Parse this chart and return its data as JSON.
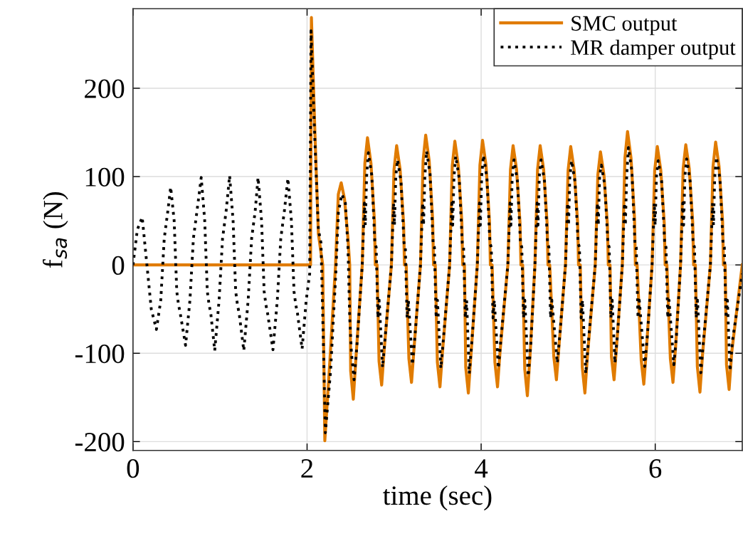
{
  "chart_data": {
    "type": "line",
    "xlabel": "time (sec)",
    "ylabel": "f$_{sa}$ (N)",
    "xlim": [
      0,
      7
    ],
    "xticks": [
      0,
      2,
      4,
      6
    ],
    "ylim": [
      -210,
      290
    ],
    "yticks": [
      {
        "value": -200,
        "label": "-200"
      },
      {
        "value": -100,
        "label": "-100"
      },
      0,
      100,
      200
    ],
    "grid": true,
    "legend": "top right",
    "series": [
      {
        "name": "SMC output",
        "color": "#e07b00",
        "line_style": "solid",
        "x": [
          0,
          2.04,
          2.05,
          2.09,
          2.13,
          2.18,
          2.204,
          2.261,
          2.327,
          2.359,
          2.392,
          2.43,
          2.47,
          2.49,
          2.501,
          2.531,
          2.561,
          2.634,
          2.664,
          2.694,
          2.734,
          2.774,
          2.784,
          2.804,
          2.827,
          2.857,
          2.887,
          2.969,
          2.999,
          3.029,
          3.069,
          3.109,
          3.119,
          3.139,
          3.17,
          3.2,
          3.23,
          3.303,
          3.333,
          3.363,
          3.403,
          3.443,
          3.453,
          3.473,
          3.497,
          3.527,
          3.557,
          3.638,
          3.668,
          3.698,
          3.738,
          3.778,
          3.788,
          3.808,
          3.823,
          3.853,
          3.883,
          3.956,
          3.986,
          4.016,
          4.056,
          4.096,
          4.106,
          4.126,
          4.158,
          4.188,
          4.218,
          4.307,
          4.337,
          4.367,
          4.407,
          4.447,
          4.457,
          4.477,
          4.501,
          4.531,
          4.561,
          4.618,
          4.648,
          4.678,
          4.718,
          4.758,
          4.768,
          4.788,
          4.835,
          4.865,
          4.895,
          4.969,
          4.999,
          5.029,
          5.069,
          5.109,
          5.119,
          5.139,
          5.162,
          5.192,
          5.222,
          5.311,
          5.341,
          5.371,
          5.411,
          5.451,
          5.461,
          5.481,
          5.497,
          5.527,
          5.557,
          5.622,
          5.652,
          5.682,
          5.722,
          5.762,
          5.772,
          5.792,
          5.839,
          5.869,
          5.899,
          5.964,
          5.994,
          6.024,
          6.064,
          6.104,
          6.114,
          6.134,
          6.174,
          6.204,
          6.234,
          6.291,
          6.321,
          6.351,
          6.391,
          6.431,
          6.441,
          6.461,
          6.484,
          6.514,
          6.544,
          6.634,
          6.664,
          6.694,
          6.734,
          6.774,
          6.784,
          6.804,
          6.819,
          6.849,
          6.879,
          7.0
        ],
        "values": [
          0,
          0,
          280,
          150,
          35,
          0,
          -199,
          -110,
          0,
          80,
          93,
          75,
          30,
          0,
          -120,
          -152,
          -106,
          0,
          115,
          144,
          115,
          50,
          0,
          0,
          -109,
          -136,
          -95,
          0,
          108,
          135,
          108,
          47,
          0,
          0,
          -106,
          -133,
          -93,
          0,
          118,
          147,
          118,
          51,
          0,
          0,
          -110,
          -138,
          -97,
          0,
          112,
          140,
          112,
          49,
          0,
          0,
          -116,
          -145,
          -102,
          0,
          113,
          141,
          113,
          49,
          0,
          0,
          -110,
          -138,
          -97,
          0,
          108,
          135,
          108,
          47,
          0,
          0,
          -118,
          -148,
          -104,
          0,
          108,
          135,
          108,
          47,
          0,
          0,
          -104,
          -130,
          -91,
          0,
          107,
          134,
          107,
          47,
          0,
          0,
          -116,
          -145,
          -102,
          0,
          102,
          128,
          102,
          45,
          0,
          0,
          -104,
          -130,
          -91,
          0,
          121,
          151,
          121,
          53,
          0,
          0,
          -108,
          -135,
          -95,
          0,
          107,
          134,
          107,
          47,
          0,
          0,
          -106,
          -133,
          -93,
          0,
          109,
          136,
          109,
          48,
          0,
          0,
          -115,
          -144,
          -101,
          0,
          111,
          139,
          111,
          49,
          0,
          0,
          -113,
          -141,
          -99,
          0
        ]
      },
      {
        "name": "MR damper output",
        "color": "#000000",
        "line_style": "dotted",
        "x": [
          0,
          0.05,
          0.106,
          0.16,
          0.21,
          0.269,
          0.319,
          0.359,
          0.379,
          0.399,
          0.433,
          0.473,
          0.503,
          0.523,
          0.543,
          0.604,
          0.654,
          0.694,
          0.714,
          0.734,
          0.784,
          0.824,
          0.854,
          0.874,
          0.894,
          0.939,
          0.989,
          1.029,
          1.049,
          1.069,
          1.11,
          1.15,
          1.18,
          1.2,
          1.22,
          1.273,
          1.323,
          1.363,
          1.383,
          1.403,
          1.437,
          1.477,
          1.507,
          1.527,
          1.547,
          1.608,
          1.658,
          1.698,
          1.718,
          1.738,
          1.78,
          1.82,
          1.85,
          1.87,
          1.89,
          1.943,
          1.99,
          2.03,
          2.045,
          2.09,
          2.13,
          2.16,
          2.19,
          2.21,
          2.27,
          2.33,
          2.36,
          2.4,
          2.44,
          2.47,
          2.49,
          2.51,
          2.54,
          2.57,
          2.634,
          2.659,
          2.669,
          2.684,
          2.704,
          2.744,
          2.779,
          2.794,
          2.814,
          2.829,
          2.867,
          2.897,
          2.969,
          2.994,
          3.004,
          3.019,
          3.039,
          3.079,
          3.114,
          3.129,
          3.149,
          3.164,
          3.21,
          3.24,
          3.303,
          3.328,
          3.338,
          3.353,
          3.373,
          3.413,
          3.448,
          3.463,
          3.483,
          3.498,
          3.537,
          3.567,
          3.638,
          3.663,
          3.673,
          3.688,
          3.708,
          3.748,
          3.783,
          3.798,
          3.818,
          3.833,
          3.863,
          3.893,
          3.956,
          3.981,
          3.991,
          4.006,
          4.026,
          4.066,
          4.101,
          4.116,
          4.136,
          4.151,
          4.198,
          4.228,
          4.307,
          4.332,
          4.342,
          4.357,
          4.377,
          4.417,
          4.452,
          4.467,
          4.487,
          4.502,
          4.541,
          4.571,
          4.618,
          4.643,
          4.653,
          4.668,
          4.688,
          4.728,
          4.763,
          4.778,
          4.798,
          4.813,
          4.875,
          4.905,
          4.969,
          4.994,
          5.004,
          5.019,
          5.039,
          5.079,
          5.114,
          5.129,
          5.149,
          5.164,
          5.202,
          5.232,
          5.311,
          5.336,
          5.346,
          5.361,
          5.381,
          5.421,
          5.456,
          5.471,
          5.491,
          5.506,
          5.537,
          5.567,
          5.622,
          5.647,
          5.657,
          5.672,
          5.692,
          5.732,
          5.767,
          5.782,
          5.802,
          5.817,
          5.879,
          5.909,
          5.964,
          5.989,
          5.999,
          6.014,
          6.034,
          6.074,
          6.109,
          6.124,
          6.144,
          6.159,
          6.214,
          6.244,
          6.291,
          6.316,
          6.326,
          6.341,
          6.361,
          6.401,
          6.436,
          6.451,
          6.471,
          6.486,
          6.524,
          6.554,
          6.634,
          6.659,
          6.669,
          6.684,
          6.704,
          6.744,
          6.779,
          6.794,
          6.814,
          6.829,
          6.859,
          6.889,
          7.0
        ],
        "values": [
          0,
          40,
          54,
          0,
          -50,
          -73,
          -40,
          30,
          45,
          60,
          88,
          50,
          -30,
          -45,
          -55,
          -91,
          -40,
          30,
          45,
          60,
          99,
          50,
          -30,
          -45,
          -55,
          -97,
          -40,
          30,
          45,
          60,
          101,
          50,
          -30,
          -45,
          -55,
          -97,
          -40,
          30,
          45,
          60,
          99,
          50,
          -30,
          -45,
          -55,
          -96,
          -40,
          30,
          45,
          60,
          98,
          50,
          -30,
          -45,
          -55,
          -95,
          -40,
          -10,
          265,
          140,
          40,
          25,
          -100,
          -190,
          -120,
          -10,
          60,
          80,
          70,
          20,
          -60,
          -100,
          -130,
          -95,
          0,
          70,
          45,
          100,
          127,
          101,
          25,
          20,
          -60,
          -40,
          -116,
          -82,
          0,
          70,
          45,
          100,
          119,
          95,
          25,
          20,
          -60,
          -40,
          -113,
          -80,
          0,
          70,
          45,
          100,
          129,
          103,
          25,
          20,
          -60,
          -40,
          -117,
          -83,
          0,
          70,
          45,
          100,
          123,
          98,
          25,
          20,
          -60,
          -40,
          -123,
          -87,
          0,
          70,
          45,
          100,
          124,
          99,
          25,
          20,
          -60,
          -40,
          -117,
          -83,
          0,
          70,
          45,
          100,
          119,
          95,
          25,
          20,
          -60,
          -40,
          -126,
          -89,
          0,
          70,
          45,
          100,
          119,
          95,
          25,
          20,
          -60,
          -40,
          -111,
          -78,
          0,
          70,
          45,
          100,
          118,
          94,
          25,
          20,
          -60,
          -40,
          -123,
          -87,
          0,
          70,
          45,
          100,
          113,
          90,
          25,
          20,
          -60,
          -40,
          -111,
          -78,
          0,
          70,
          45,
          100,
          133,
          106,
          25,
          20,
          -60,
          -40,
          -115,
          -81,
          0,
          70,
          45,
          100,
          118,
          94,
          25,
          20,
          -60,
          -40,
          -113,
          -80,
          0,
          70,
          45,
          100,
          120,
          95,
          25,
          20,
          -60,
          -40,
          -122,
          -86,
          0,
          70,
          45,
          100,
          122,
          97,
          25,
          20,
          -60,
          -40,
          -120,
          -85,
          -10
        ]
      }
    ]
  }
}
